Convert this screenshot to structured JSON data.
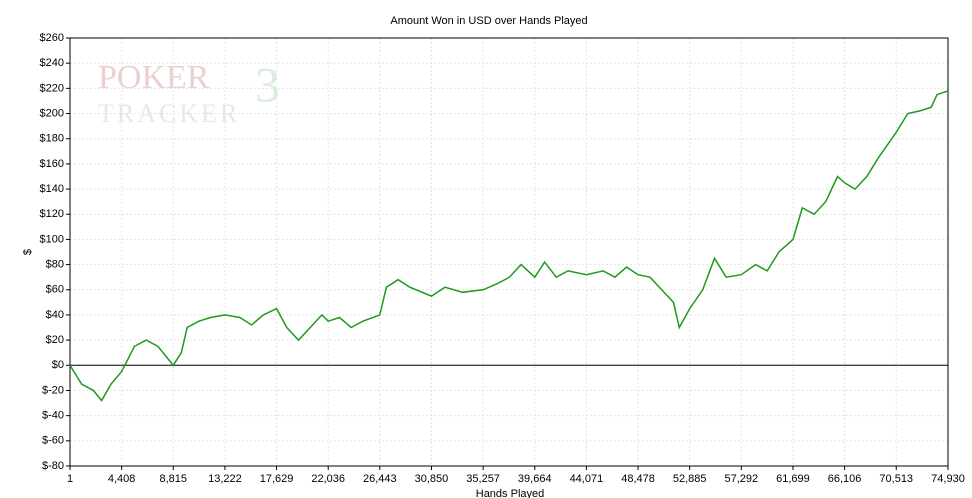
{
  "chart_data": {
    "type": "line",
    "title": "Amount Won in USD over Hands Played",
    "xlabel": "Hands Played",
    "ylabel": "$",
    "watermark": [
      "POKER",
      "TRACKER",
      "3"
    ],
    "xlim": [
      1,
      74930
    ],
    "ylim": [
      -80,
      260
    ],
    "grid": true,
    "zero_line": true,
    "xticks": [
      1,
      {
        "value": 4408,
        "label": "4,408"
      },
      {
        "value": 8815,
        "label": "8,815"
      },
      {
        "value": 13222,
        "label": "13,222"
      },
      {
        "value": 17629,
        "label": "17,629"
      },
      {
        "value": 22036,
        "label": "22,036"
      },
      {
        "value": 26443,
        "label": "26,443"
      },
      {
        "value": 30850,
        "label": "30,850"
      },
      {
        "value": 35257,
        "label": "35,257"
      },
      {
        "value": 39664,
        "label": "39,664"
      },
      {
        "value": 44071,
        "label": "44,071"
      },
      {
        "value": 48478,
        "label": "48,478"
      },
      {
        "value": 52885,
        "label": "52,885"
      },
      {
        "value": 57292,
        "label": "57,292"
      },
      {
        "value": 61699,
        "label": "61,699"
      },
      {
        "value": 66106,
        "label": "66,106"
      },
      {
        "value": 70513,
        "label": "70,513"
      },
      {
        "value": 74930,
        "label": "74,930"
      }
    ],
    "yticks": [
      {
        "value": -80,
        "label": "$-80"
      },
      {
        "value": -60,
        "label": "$-60"
      },
      {
        "value": -40,
        "label": "$-40"
      },
      {
        "value": -20,
        "label": "$-20"
      },
      {
        "value": 0,
        "label": "$0"
      },
      {
        "value": 20,
        "label": "$20"
      },
      {
        "value": 40,
        "label": "$40"
      },
      {
        "value": 60,
        "label": "$60"
      },
      {
        "value": 80,
        "label": "$80"
      },
      {
        "value": 100,
        "label": "$100"
      },
      {
        "value": 120,
        "label": "$120"
      },
      {
        "value": 140,
        "label": "$140"
      },
      {
        "value": 160,
        "label": "$160"
      },
      {
        "value": 180,
        "label": "$180"
      },
      {
        "value": 200,
        "label": "$200"
      },
      {
        "value": 220,
        "label": "$220"
      },
      {
        "value": 240,
        "label": "$240"
      },
      {
        "value": 260,
        "label": "$260"
      }
    ],
    "x": [
      1,
      1000,
      2000,
      2700,
      3500,
      4408,
      5500,
      6500,
      7500,
      8815,
      9500,
      10000,
      11000,
      12000,
      13222,
      14500,
      15500,
      16500,
      17629,
      18500,
      19500,
      20500,
      21500,
      22036,
      23000,
      24000,
      25000,
      26443,
      27000,
      28000,
      29000,
      30850,
      32000,
      33500,
      35257,
      36500,
      37500,
      38500,
      39664,
      40500,
      41500,
      42500,
      44071,
      45500,
      46500,
      47500,
      48478,
      49500,
      50500,
      51500,
      52000,
      52885,
      54000,
      55000,
      56000,
      57292,
      58500,
      59500,
      60500,
      61699,
      62500,
      63500,
      64500,
      65500,
      66106,
      67000,
      68000,
      69000,
      70513,
      71500,
      72500,
      73500,
      74000,
      74930
    ],
    "series": [
      {
        "name": "Amount Won",
        "color": "#1e9a1e",
        "values": [
          0,
          -15,
          -20,
          -28,
          -15,
          -5,
          15,
          20,
          15,
          0,
          10,
          30,
          35,
          38,
          40,
          38,
          32,
          40,
          45,
          30,
          20,
          30,
          40,
          35,
          38,
          30,
          35,
          40,
          62,
          68,
          62,
          55,
          62,
          58,
          60,
          65,
          70,
          80,
          70,
          82,
          70,
          75,
          72,
          75,
          70,
          78,
          72,
          70,
          60,
          50,
          30,
          45,
          60,
          85,
          70,
          72,
          80,
          75,
          90,
          100,
          125,
          120,
          130,
          150,
          145,
          140,
          150,
          165,
          185,
          200,
          202,
          205,
          215,
          218
        ]
      }
    ]
  }
}
